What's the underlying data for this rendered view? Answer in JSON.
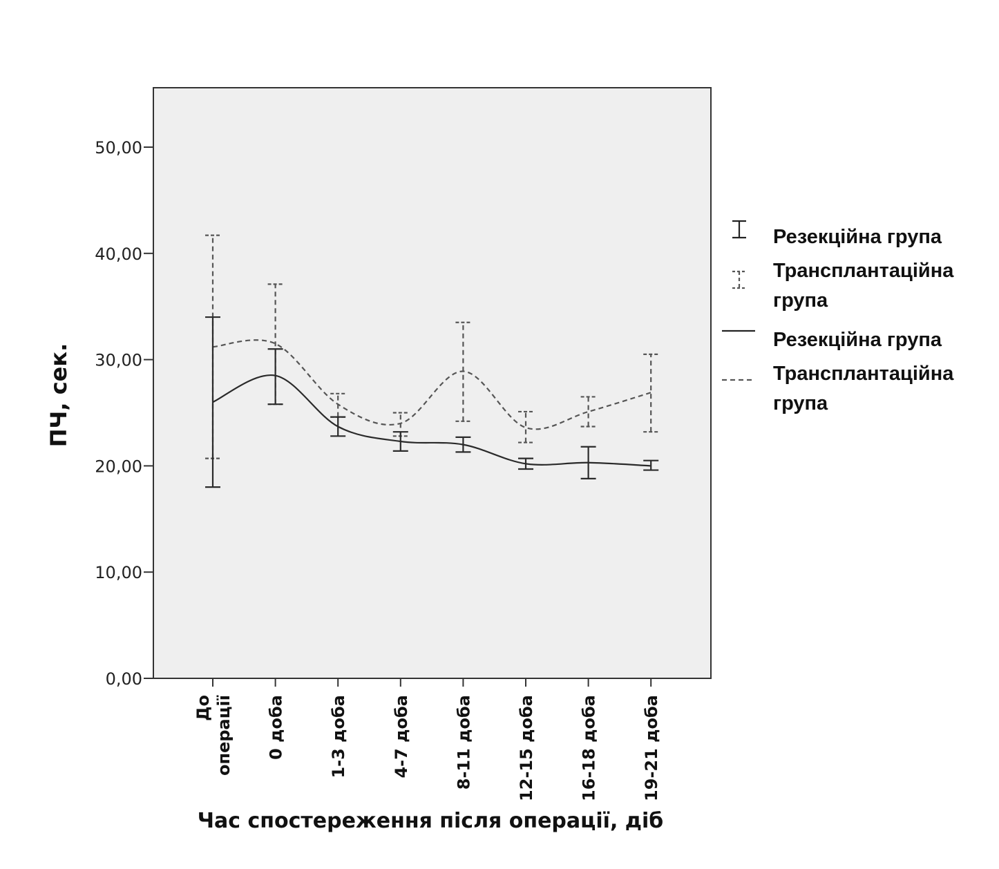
{
  "chart_data": {
    "type": "line",
    "subtype": "line with error bars (mean ± CI), smoothed",
    "title": "",
    "xlabel": "Час спостереження після операції, діб",
    "ylabel": "ПЧ, сек.",
    "ylim": [
      0,
      55
    ],
    "yticks": [
      0,
      10,
      20,
      30,
      40,
      50
    ],
    "ytick_labels": [
      "0,00",
      "10,00",
      "20,00",
      "30,00",
      "40,00",
      "50,00"
    ],
    "categories": [
      [
        "До",
        "операції"
      ],
      [
        "0 доба"
      ],
      [
        "1-3 доба"
      ],
      [
        "4-7 доба"
      ],
      [
        "8-11 доба"
      ],
      [
        "12-15 доба"
      ],
      [
        "16-18 доба"
      ],
      [
        "19-21 доба"
      ]
    ],
    "grid": false,
    "background": "#efefef",
    "legend_position": "right",
    "legend": [
      {
        "label": "Резекційна група",
        "marker": "errorbar-solid"
      },
      {
        "label": "Трансплантаційна група",
        "marker": "errorbar-dashed"
      },
      {
        "label": "Резекційна група",
        "marker": "line-solid"
      },
      {
        "label": "Трансплантаційна група",
        "marker": "line-dashed"
      }
    ],
    "series": [
      {
        "name": "Резекційна група",
        "style": "solid",
        "color": "#2a2a2a",
        "values": [
          26.0,
          28.5,
          23.7,
          22.3,
          22.0,
          20.2,
          20.3,
          20.0
        ],
        "lower": [
          18.0,
          25.8,
          22.8,
          21.4,
          21.3,
          19.7,
          18.8,
          19.6
        ],
        "upper": [
          34.0,
          31.0,
          24.6,
          23.2,
          22.7,
          20.7,
          21.8,
          20.5
        ]
      },
      {
        "name": "Трансплантаційна група",
        "style": "dashed",
        "color": "#555555",
        "values": [
          31.2,
          31.5,
          25.8,
          24.0,
          28.9,
          23.6,
          25.1,
          26.9
        ],
        "lower": [
          20.7,
          25.8,
          24.6,
          22.8,
          24.2,
          22.2,
          23.7,
          23.2
        ],
        "upper": [
          41.7,
          37.1,
          26.8,
          25.0,
          33.5,
          25.1,
          26.5,
          30.5
        ]
      }
    ]
  }
}
